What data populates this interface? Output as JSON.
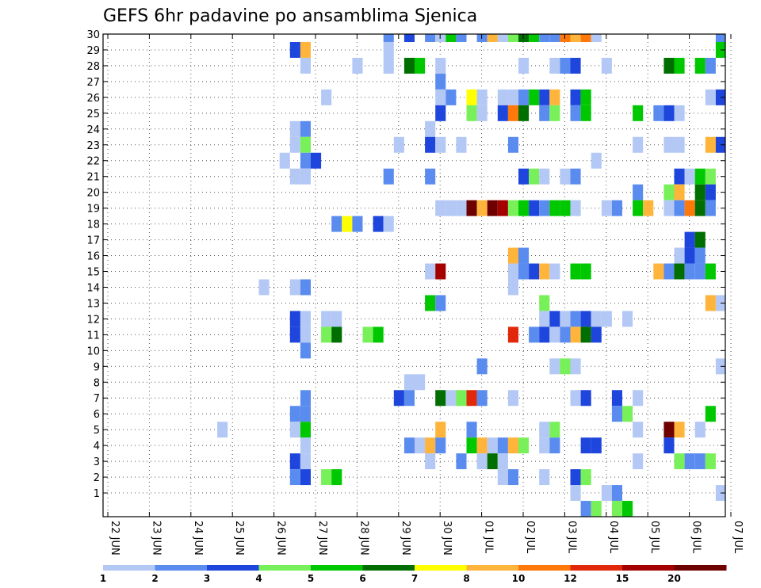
{
  "chart_data": {
    "type": "heatmap",
    "title": "GEFS 6hr padavine po ansamblima Sjenica",
    "xlabel": "",
    "ylabel": "",
    "y_members": [
      1,
      2,
      3,
      4,
      5,
      6,
      7,
      8,
      9,
      10,
      11,
      12,
      13,
      14,
      15,
      16,
      17,
      18,
      19,
      20,
      21,
      22,
      23,
      24,
      25,
      26,
      27,
      28,
      29,
      30
    ],
    "x_dates": [
      "22 JUN",
      "23 JUN",
      "24 JUN",
      "25 JUN",
      "26 JUN",
      "27 JUN",
      "28 JUN",
      "29 JUN",
      "30 JUN",
      "01 JUL",
      "02 JUL",
      "03 JUL",
      "04 JUL",
      "05 JUL",
      "06 JUL",
      "07 JUL"
    ],
    "x_steps_per_day": 4,
    "grid": true,
    "legend": "bottom-colorbar",
    "colorbar": {
      "levels": [
        "1",
        "2",
        "3",
        "4",
        "5",
        "6",
        "7",
        "8",
        "10",
        "12",
        "15",
        "20"
      ],
      "colors": [
        "#b4c8f5",
        "#5a8cf0",
        "#1e46dc",
        "#78f05a",
        "#00c800",
        "#006e00",
        "#ffff00",
        "#ffb43c",
        "#ff780a",
        "#e1280a",
        "#a50000",
        "#6e0000"
      ]
    },
    "cells": [
      [
        30,
        0,
        27,
        2
      ],
      [
        30,
        0,
        29,
        3
      ],
      [
        30,
        0,
        31,
        2
      ],
      [
        30,
        0,
        32,
        1
      ],
      [
        30,
        0,
        33,
        5
      ],
      [
        30,
        0,
        34,
        2
      ],
      [
        30,
        0,
        36,
        2
      ],
      [
        30,
        0,
        37,
        8
      ],
      [
        30,
        0,
        38,
        1
      ],
      [
        30,
        0,
        39,
        4
      ],
      [
        30,
        0,
        40,
        6
      ],
      [
        30,
        0,
        41,
        5
      ],
      [
        30,
        0,
        42,
        2
      ],
      [
        30,
        0,
        43,
        2
      ],
      [
        30,
        0,
        44,
        9
      ],
      [
        30,
        0,
        45,
        8
      ],
      [
        30,
        0,
        46,
        9
      ],
      [
        30,
        0,
        47,
        1
      ],
      [
        30,
        0,
        59,
        2
      ],
      [
        29,
        0,
        18,
        3
      ],
      [
        29,
        0,
        19,
        8
      ],
      [
        29,
        0,
        27,
        1
      ],
      [
        29,
        0,
        59,
        5
      ],
      [
        28,
        0,
        19,
        1
      ],
      [
        28,
        0,
        24,
        1
      ],
      [
        28,
        0,
        27,
        1
      ],
      [
        28,
        0,
        29,
        6
      ],
      [
        28,
        0,
        30,
        5
      ],
      [
        28,
        0,
        32,
        1
      ],
      [
        28,
        0,
        40,
        1
      ],
      [
        28,
        0,
        43,
        1
      ],
      [
        28,
        0,
        44,
        2
      ],
      [
        28,
        0,
        45,
        3
      ],
      [
        28,
        0,
        48,
        1
      ],
      [
        28,
        0,
        54,
        6
      ],
      [
        28,
        0,
        55,
        5
      ],
      [
        28,
        0,
        57,
        5
      ],
      [
        28,
        0,
        58,
        2
      ],
      [
        27,
        0,
        32,
        2
      ],
      [
        26,
        0,
        21,
        1
      ],
      [
        26,
        0,
        32,
        1
      ],
      [
        26,
        0,
        33,
        2
      ],
      [
        26,
        0,
        35,
        7
      ],
      [
        26,
        0,
        36,
        1
      ],
      [
        26,
        0,
        38,
        1
      ],
      [
        26,
        0,
        39,
        1
      ],
      [
        26,
        0,
        40,
        2
      ],
      [
        26,
        0,
        41,
        5
      ],
      [
        26,
        0,
        42,
        3
      ],
      [
        26,
        0,
        43,
        8
      ],
      [
        26,
        0,
        45,
        3
      ],
      [
        26,
        0,
        46,
        5
      ],
      [
        26,
        0,
        58,
        1
      ],
      [
        26,
        0,
        59,
        3
      ],
      [
        25,
        0,
        32,
        3
      ],
      [
        25,
        0,
        35,
        4
      ],
      [
        25,
        0,
        36,
        1
      ],
      [
        25,
        0,
        38,
        3
      ],
      [
        25,
        0,
        39,
        9
      ],
      [
        25,
        0,
        40,
        6
      ],
      [
        25,
        0,
        42,
        2
      ],
      [
        25,
        0,
        43,
        4
      ],
      [
        25,
        0,
        45,
        2
      ],
      [
        25,
        0,
        46,
        5
      ],
      [
        25,
        0,
        51,
        5
      ],
      [
        25,
        0,
        53,
        2
      ],
      [
        25,
        0,
        54,
        3
      ],
      [
        25,
        0,
        55,
        1
      ],
      [
        24,
        0,
        18,
        1
      ],
      [
        24,
        0,
        19,
        2
      ],
      [
        24,
        0,
        31,
        1
      ],
      [
        23,
        0,
        18,
        1
      ],
      [
        23,
        0,
        19,
        4
      ],
      [
        23,
        0,
        28,
        1
      ],
      [
        23,
        0,
        31,
        3
      ],
      [
        23,
        0,
        32,
        1
      ],
      [
        23,
        0,
        34,
        1
      ],
      [
        23,
        0,
        39,
        2
      ],
      [
        23,
        0,
        51,
        1
      ],
      [
        23,
        0,
        54,
        1
      ],
      [
        23,
        0,
        55,
        1
      ],
      [
        23,
        0,
        58,
        8
      ],
      [
        23,
        0,
        59,
        3
      ],
      [
        23,
        0,
        60,
        2
      ],
      [
        22,
        0,
        17,
        1
      ],
      [
        22,
        0,
        19,
        2
      ],
      [
        22,
        0,
        20,
        3
      ],
      [
        22,
        0,
        47,
        1
      ],
      [
        21,
        0,
        18,
        1
      ],
      [
        21,
        0,
        19,
        1
      ],
      [
        21,
        0,
        27,
        2
      ],
      [
        21,
        0,
        31,
        2
      ],
      [
        21,
        0,
        40,
        3
      ],
      [
        21,
        0,
        41,
        4
      ],
      [
        21,
        0,
        42,
        1
      ],
      [
        21,
        0,
        44,
        1
      ],
      [
        21,
        0,
        45,
        2
      ],
      [
        21,
        0,
        55,
        3
      ],
      [
        21,
        0,
        56,
        1
      ],
      [
        21,
        0,
        57,
        5
      ],
      [
        21,
        0,
        58,
        4
      ],
      [
        20,
        0,
        51,
        2
      ],
      [
        20,
        0,
        54,
        4
      ],
      [
        20,
        0,
        55,
        8
      ],
      [
        20,
        0,
        57,
        6
      ],
      [
        20,
        0,
        58,
        3
      ],
      [
        19,
        0,
        32,
        1
      ],
      [
        19,
        0,
        33,
        1
      ],
      [
        19,
        0,
        34,
        1
      ],
      [
        19,
        0,
        35,
        12
      ],
      [
        19,
        0,
        36,
        8
      ],
      [
        19,
        0,
        37,
        12
      ],
      [
        19,
        0,
        38,
        11
      ],
      [
        19,
        0,
        39,
        4
      ],
      [
        19,
        0,
        40,
        5
      ],
      [
        19,
        0,
        41,
        3
      ],
      [
        19,
        0,
        42,
        2
      ],
      [
        19,
        0,
        43,
        5
      ],
      [
        19,
        0,
        44,
        5
      ],
      [
        19,
        0,
        45,
        1
      ],
      [
        19,
        0,
        48,
        1
      ],
      [
        19,
        0,
        49,
        2
      ],
      [
        19,
        0,
        51,
        5
      ],
      [
        19,
        0,
        52,
        8
      ],
      [
        19,
        0,
        54,
        1
      ],
      [
        19,
        0,
        55,
        2
      ],
      [
        19,
        0,
        56,
        9
      ],
      [
        19,
        0,
        57,
        6
      ],
      [
        19,
        0,
        58,
        2
      ],
      [
        18,
        0,
        22,
        2
      ],
      [
        18,
        0,
        23,
        7
      ],
      [
        18,
        0,
        24,
        2
      ],
      [
        18,
        0,
        26,
        3
      ],
      [
        18,
        0,
        27,
        1
      ],
      [
        17,
        0,
        56,
        3
      ],
      [
        17,
        0,
        57,
        6
      ],
      [
        16,
        0,
        39,
        8
      ],
      [
        16,
        0,
        40,
        2
      ],
      [
        16,
        0,
        55,
        1
      ],
      [
        16,
        0,
        56,
        3
      ],
      [
        16,
        0,
        57,
        2
      ],
      [
        15,
        0,
        31,
        1
      ],
      [
        15,
        0,
        32,
        11
      ],
      [
        15,
        0,
        39,
        1
      ],
      [
        15,
        0,
        40,
        2
      ],
      [
        15,
        0,
        41,
        3
      ],
      [
        15,
        0,
        42,
        8
      ],
      [
        15,
        0,
        43,
        1
      ],
      [
        15,
        0,
        45,
        5
      ],
      [
        15,
        0,
        46,
        5
      ],
      [
        15,
        0,
        53,
        8
      ],
      [
        15,
        0,
        54,
        2
      ],
      [
        15,
        0,
        55,
        6
      ],
      [
        15,
        0,
        56,
        2
      ],
      [
        15,
        0,
        57,
        2
      ],
      [
        15,
        0,
        58,
        5
      ],
      [
        14,
        0,
        15,
        1
      ],
      [
        14,
        0,
        18,
        1
      ],
      [
        14,
        0,
        19,
        2
      ],
      [
        14,
        0,
        39,
        1
      ],
      [
        13,
        0,
        31,
        5
      ],
      [
        13,
        0,
        32,
        2
      ],
      [
        13,
        0,
        42,
        4
      ],
      [
        13,
        0,
        58,
        8
      ],
      [
        13,
        0,
        59,
        1
      ],
      [
        13,
        0,
        60,
        3
      ],
      [
        12,
        0,
        18,
        3
      ],
      [
        12,
        0,
        19,
        1
      ],
      [
        12,
        0,
        21,
        1
      ],
      [
        12,
        0,
        22,
        1
      ],
      [
        12,
        0,
        42,
        1
      ],
      [
        12,
        0,
        43,
        3
      ],
      [
        12,
        0,
        44,
        1
      ],
      [
        12,
        0,
        45,
        2
      ],
      [
        12,
        0,
        46,
        3
      ],
      [
        12,
        0,
        47,
        1
      ],
      [
        12,
        0,
        48,
        1
      ],
      [
        12,
        0,
        50,
        1
      ],
      [
        11,
        0,
        18,
        3
      ],
      [
        11,
        0,
        19,
        1
      ],
      [
        11,
        0,
        21,
        4
      ],
      [
        11,
        0,
        22,
        6
      ],
      [
        11,
        0,
        25,
        4
      ],
      [
        11,
        0,
        26,
        5
      ],
      [
        11,
        0,
        39,
        10
      ],
      [
        11,
        0,
        41,
        2
      ],
      [
        11,
        0,
        42,
        3
      ],
      [
        11,
        0,
        43,
        1
      ],
      [
        11,
        0,
        44,
        2
      ],
      [
        11,
        0,
        45,
        8
      ],
      [
        11,
        0,
        46,
        6
      ],
      [
        11,
        0,
        47,
        3
      ],
      [
        10,
        0,
        19,
        2
      ],
      [
        9,
        0,
        36,
        2
      ],
      [
        9,
        0,
        43,
        1
      ],
      [
        9,
        0,
        44,
        4
      ],
      [
        9,
        0,
        45,
        1
      ],
      [
        9,
        0,
        59,
        1
      ],
      [
        8,
        0,
        29,
        1
      ],
      [
        8,
        0,
        30,
        1
      ],
      [
        7,
        0,
        19,
        2
      ],
      [
        7,
        0,
        28,
        3
      ],
      [
        7,
        0,
        29,
        2
      ],
      [
        7,
        0,
        32,
        6
      ],
      [
        7,
        0,
        33,
        1
      ],
      [
        7,
        0,
        34,
        4
      ],
      [
        7,
        0,
        35,
        10
      ],
      [
        7,
        0,
        36,
        2
      ],
      [
        7,
        0,
        39,
        1
      ],
      [
        7,
        0,
        45,
        1
      ],
      [
        7,
        0,
        46,
        3
      ],
      [
        7,
        0,
        49,
        3
      ],
      [
        7,
        0,
        51,
        1
      ],
      [
        6,
        0,
        18,
        2
      ],
      [
        6,
        0,
        19,
        2
      ],
      [
        6,
        0,
        49,
        2
      ],
      [
        6,
        0,
        50,
        4
      ],
      [
        6,
        0,
        58,
        5
      ],
      [
        5,
        0,
        11,
        1
      ],
      [
        5,
        0,
        18,
        1
      ],
      [
        5,
        0,
        19,
        5
      ],
      [
        5,
        0,
        32,
        8
      ],
      [
        5,
        0,
        35,
        2
      ],
      [
        5,
        0,
        42,
        1
      ],
      [
        5,
        0,
        43,
        4
      ],
      [
        5,
        0,
        51,
        1
      ],
      [
        5,
        0,
        54,
        12
      ],
      [
        5,
        0,
        55,
        8
      ],
      [
        5,
        0,
        57,
        1
      ],
      [
        4,
        0,
        19,
        1
      ],
      [
        4,
        0,
        29,
        2
      ],
      [
        4,
        0,
        30,
        1
      ],
      [
        4,
        0,
        31,
        8
      ],
      [
        4,
        0,
        32,
        2
      ],
      [
        4,
        0,
        35,
        5
      ],
      [
        4,
        0,
        36,
        8
      ],
      [
        4,
        0,
        37,
        1
      ],
      [
        4,
        0,
        38,
        2
      ],
      [
        4,
        0,
        39,
        8
      ],
      [
        4,
        0,
        40,
        4
      ],
      [
        4,
        0,
        42,
        1
      ],
      [
        4,
        0,
        43,
        2
      ],
      [
        4,
        0,
        46,
        3
      ],
      [
        4,
        0,
        47,
        3
      ],
      [
        4,
        0,
        54,
        3
      ],
      [
        4,
        0,
        60,
        3
      ],
      [
        3,
        0,
        18,
        3
      ],
      [
        3,
        0,
        19,
        1
      ],
      [
        3,
        0,
        31,
        1
      ],
      [
        3,
        0,
        34,
        2
      ],
      [
        3,
        0,
        36,
        1
      ],
      [
        3,
        0,
        37,
        6
      ],
      [
        3,
        0,
        38,
        1
      ],
      [
        3,
        0,
        51,
        1
      ],
      [
        3,
        0,
        55,
        4
      ],
      [
        3,
        0,
        56,
        2
      ],
      [
        3,
        0,
        57,
        2
      ],
      [
        3,
        0,
        58,
        4
      ],
      [
        2,
        0,
        18,
        2
      ],
      [
        2,
        0,
        19,
        3
      ],
      [
        2,
        0,
        21,
        4
      ],
      [
        2,
        0,
        22,
        5
      ],
      [
        2,
        0,
        38,
        1
      ],
      [
        2,
        0,
        39,
        2
      ],
      [
        2,
        0,
        42,
        1
      ],
      [
        2,
        0,
        45,
        3
      ],
      [
        2,
        0,
        46,
        4
      ],
      [
        1,
        0,
        45,
        1
      ],
      [
        1,
        0,
        48,
        1
      ],
      [
        1,
        0,
        49,
        2
      ],
      [
        1,
        0,
        59,
        1
      ],
      [
        1,
        0,
        60,
        2
      ],
      [
        0,
        0,
        46,
        2
      ],
      [
        0,
        0,
        47,
        4
      ],
      [
        0,
        0,
        49,
        4
      ],
      [
        0,
        0,
        50,
        5
      ]
    ]
  }
}
